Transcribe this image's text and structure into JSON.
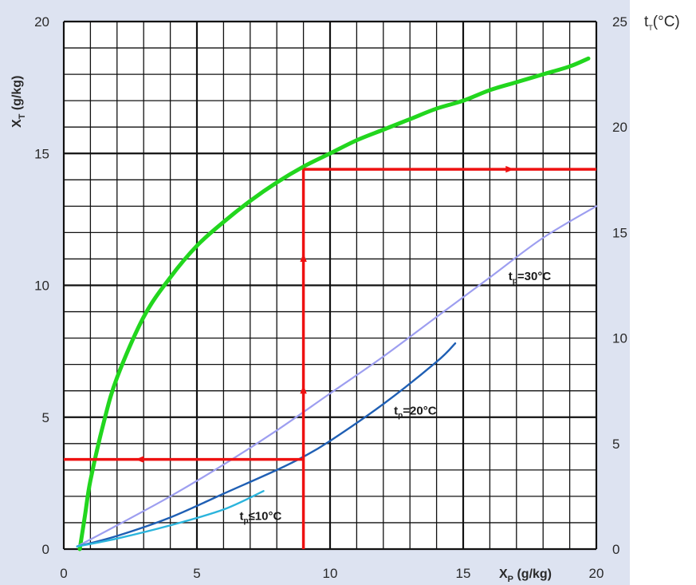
{
  "chart_data": {
    "type": "line",
    "xlabel": "X",
    "xlabel_sub": "P",
    "xlabel_unit": " (g/kg)",
    "ylabel": "X",
    "ylabel_sub": "T",
    "ylabel_unit": " (g/kg)",
    "y2label": "t",
    "y2label_sub": "T",
    "y2label_unit": "(°C)",
    "xlim": [
      0,
      20
    ],
    "ylim": [
      0,
      20
    ],
    "y2lim": [
      0,
      25
    ],
    "x_ticks": [
      "0",
      "5",
      "10",
      "15",
      "20"
    ],
    "y_ticks": [
      "0",
      "5",
      "10",
      "15",
      "20"
    ],
    "y2_ticks": [
      "0",
      "5",
      "10",
      "15",
      "20",
      "25"
    ],
    "grid": true,
    "background": "#dde3f1",
    "series": [
      {
        "id": "green",
        "color": "#22d61e",
        "x": [
          0.6,
          0.8,
          1.0,
          1.5,
          2.0,
          3.0,
          4.0,
          5.0,
          6.0,
          7.0,
          8.0,
          9.0,
          10.0,
          11.0,
          12.0,
          13.0,
          14.0,
          15.0,
          16.0,
          17.0,
          18.0,
          19.0,
          19.7
        ],
        "y": [
          0.0,
          1.3,
          2.6,
          4.8,
          6.5,
          8.8,
          10.3,
          11.5,
          12.4,
          13.2,
          13.9,
          14.5,
          15.0,
          15.5,
          15.9,
          16.3,
          16.7,
          17.0,
          17.4,
          17.7,
          18.0,
          18.3,
          18.6
        ]
      },
      {
        "id": "tp30",
        "color": "#9d9ef0",
        "x": [
          0.5,
          2,
          4,
          6,
          8,
          10,
          12,
          14,
          16,
          18,
          20
        ],
        "y": [
          0.1,
          0.9,
          2.0,
          3.2,
          4.5,
          5.9,
          7.3,
          8.8,
          10.3,
          11.8,
          13.0
        ]
      },
      {
        "id": "tp20",
        "color": "#1f5fb4",
        "x": [
          0.5,
          2,
          4,
          6,
          8,
          9,
          10,
          12,
          14,
          14.7
        ],
        "y": [
          0.1,
          0.5,
          1.2,
          2.1,
          3.0,
          3.5,
          4.1,
          5.5,
          7.1,
          7.8
        ]
      },
      {
        "id": "tp10",
        "color": "#2bb4dc",
        "x": [
          0.5,
          2,
          4,
          6,
          7.5
        ],
        "y": [
          0.1,
          0.4,
          0.9,
          1.5,
          2.2
        ]
      }
    ],
    "guide_lines": {
      "color": "#ee1111",
      "x_vertical": 9,
      "y_high": 14.4,
      "y_low": 3.4,
      "x_right_end": 20,
      "x_left_end": 0
    },
    "annotations": [
      {
        "id": "tp30",
        "text_main": "t",
        "text_sub": "p",
        "text_rest": "=30°C",
        "x": 16.7,
        "y": 10.2
      },
      {
        "id": "tp20",
        "text_main": "t",
        "text_sub": "p",
        "text_rest": "=20°C",
        "x": 12.4,
        "y": 5.1
      },
      {
        "id": "tp10",
        "text_main": "t",
        "text_sub": "p",
        "text_rest": "≤10°C",
        "x": 6.6,
        "y": 1.1
      }
    ]
  }
}
